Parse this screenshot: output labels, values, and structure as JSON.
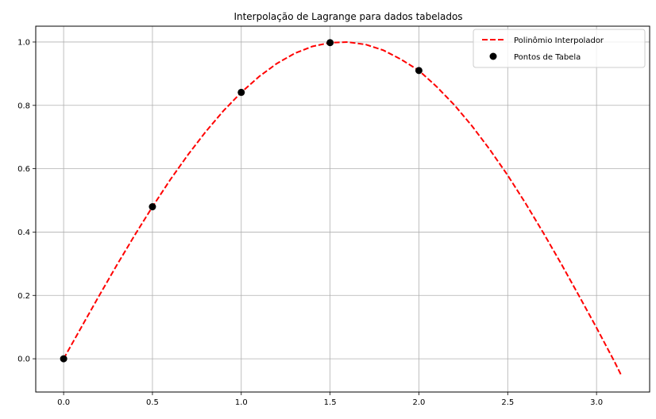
{
  "chart_data": {
    "type": "line",
    "title": "Interpolação de Lagrange para dados tabelados",
    "xlabel": "",
    "ylabel": "",
    "xlim": [
      -0.157,
      3.299
    ],
    "ylim": [
      -0.105,
      1.05
    ],
    "xticks": [
      0.0,
      0.5,
      1.0,
      1.5,
      2.0,
      2.5,
      3.0
    ],
    "xtick_labels": [
      "0.0",
      "0.5",
      "1.0",
      "1.5",
      "2.0",
      "2.5",
      "3.0"
    ],
    "yticks": [
      0.0,
      0.2,
      0.4,
      0.6,
      0.8,
      1.0
    ],
    "ytick_labels": [
      "0.0",
      "0.2",
      "0.4",
      "0.6",
      "0.8",
      "1.0"
    ],
    "grid": true,
    "legend_position": "top-right",
    "series": [
      {
        "name": "Polinômio Interpolador",
        "kind": "line",
        "style": "dashed",
        "color": "#ff0000",
        "x": [
          0.0,
          0.1,
          0.2,
          0.3,
          0.4,
          0.5,
          0.6,
          0.7,
          0.8,
          0.9,
          1.0,
          1.1,
          1.2,
          1.3,
          1.4,
          1.5,
          1.6,
          1.7,
          1.8,
          1.9,
          2.0,
          2.1,
          2.2,
          2.3,
          2.4,
          2.5,
          2.6,
          2.7,
          2.8,
          2.9,
          3.0,
          3.1,
          3.14
        ],
        "y": [
          0.0,
          0.1,
          0.199,
          0.296,
          0.39,
          0.48,
          0.565,
          0.644,
          0.717,
          0.783,
          0.841,
          0.891,
          0.932,
          0.964,
          0.986,
          0.998,
          1.0,
          0.992,
          0.974,
          0.945,
          0.91,
          0.859,
          0.801,
          0.734,
          0.66,
          0.579,
          0.491,
          0.398,
          0.301,
          0.2,
          0.098,
          -0.008,
          -0.053
        ]
      },
      {
        "name": "Pontos de Tabela",
        "kind": "scatter",
        "color": "#000000",
        "x": [
          0.0,
          0.5,
          1.0,
          1.5,
          2.0
        ],
        "y": [
          0.0,
          0.48,
          0.841,
          0.998,
          0.91
        ]
      }
    ]
  }
}
